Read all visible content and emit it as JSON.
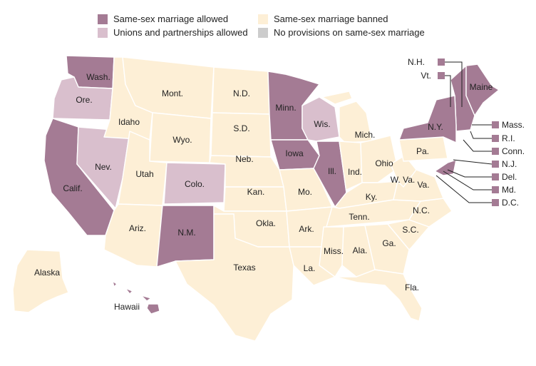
{
  "legend": [
    {
      "key": "allowed",
      "label": "Same-sex marriage allowed"
    },
    {
      "key": "unions",
      "label": "Unions and partnerships allowed"
    },
    {
      "key": "banned",
      "label": "Same-sex marriage banned"
    },
    {
      "key": "none",
      "label": "No provisions on same-sex marriage"
    }
  ],
  "colors": {
    "allowed": "#a47b94",
    "unions": "#d9bfcd",
    "banned": "#fdefd6",
    "none": "#cccccc"
  },
  "states": [
    {
      "abbr": "Wash.",
      "status": "allowed"
    },
    {
      "abbr": "Ore.",
      "status": "unions"
    },
    {
      "abbr": "Calif.",
      "status": "allowed"
    },
    {
      "abbr": "Nev.",
      "status": "unions"
    },
    {
      "abbr": "Idaho",
      "status": "banned"
    },
    {
      "abbr": "Mont.",
      "status": "banned"
    },
    {
      "abbr": "Wyo.",
      "status": "banned"
    },
    {
      "abbr": "Utah",
      "status": "banned"
    },
    {
      "abbr": "Colo.",
      "status": "unions"
    },
    {
      "abbr": "Ariz.",
      "status": "banned"
    },
    {
      "abbr": "N.M.",
      "status": "allowed"
    },
    {
      "abbr": "N.D.",
      "status": "banned"
    },
    {
      "abbr": "S.D.",
      "status": "banned"
    },
    {
      "abbr": "Neb.",
      "status": "banned"
    },
    {
      "abbr": "Kan.",
      "status": "banned"
    },
    {
      "abbr": "Okla.",
      "status": "banned"
    },
    {
      "abbr": "Texas",
      "status": "banned"
    },
    {
      "abbr": "Minn.",
      "status": "allowed"
    },
    {
      "abbr": "Iowa",
      "status": "allowed"
    },
    {
      "abbr": "Mo.",
      "status": "banned"
    },
    {
      "abbr": "Ark.",
      "status": "banned"
    },
    {
      "abbr": "La.",
      "status": "banned"
    },
    {
      "abbr": "Wis.",
      "status": "unions"
    },
    {
      "abbr": "Ill.",
      "status": "allowed"
    },
    {
      "abbr": "Mich.",
      "status": "banned"
    },
    {
      "abbr": "Ind.",
      "status": "banned"
    },
    {
      "abbr": "Ohio",
      "status": "banned"
    },
    {
      "abbr": "Ky.",
      "status": "banned"
    },
    {
      "abbr": "Tenn.",
      "status": "banned"
    },
    {
      "abbr": "Miss.",
      "status": "banned"
    },
    {
      "abbr": "Ala.",
      "status": "banned"
    },
    {
      "abbr": "Ga.",
      "status": "banned"
    },
    {
      "abbr": "Fla.",
      "status": "banned"
    },
    {
      "abbr": "S.C.",
      "status": "banned"
    },
    {
      "abbr": "N.C.",
      "status": "banned"
    },
    {
      "abbr": "Va.",
      "status": "banned"
    },
    {
      "abbr": "W. Va.",
      "status": "banned"
    },
    {
      "abbr": "Pa.",
      "status": "banned"
    },
    {
      "abbr": "N.Y.",
      "status": "allowed"
    },
    {
      "abbr": "Maine",
      "status": "allowed"
    },
    {
      "abbr": "Alaska",
      "status": "banned"
    },
    {
      "abbr": "Hawaii",
      "status": "allowed"
    }
  ],
  "callouts": [
    {
      "abbr": "N.H.",
      "status": "allowed"
    },
    {
      "abbr": "Vt.",
      "status": "allowed"
    },
    {
      "abbr": "Mass.",
      "status": "allowed"
    },
    {
      "abbr": "R.I.",
      "status": "allowed"
    },
    {
      "abbr": "Conn.",
      "status": "allowed"
    },
    {
      "abbr": "N.J.",
      "status": "allowed"
    },
    {
      "abbr": "Del.",
      "status": "allowed"
    },
    {
      "abbr": "Md.",
      "status": "allowed"
    },
    {
      "abbr": "D.C.",
      "status": "allowed"
    }
  ]
}
